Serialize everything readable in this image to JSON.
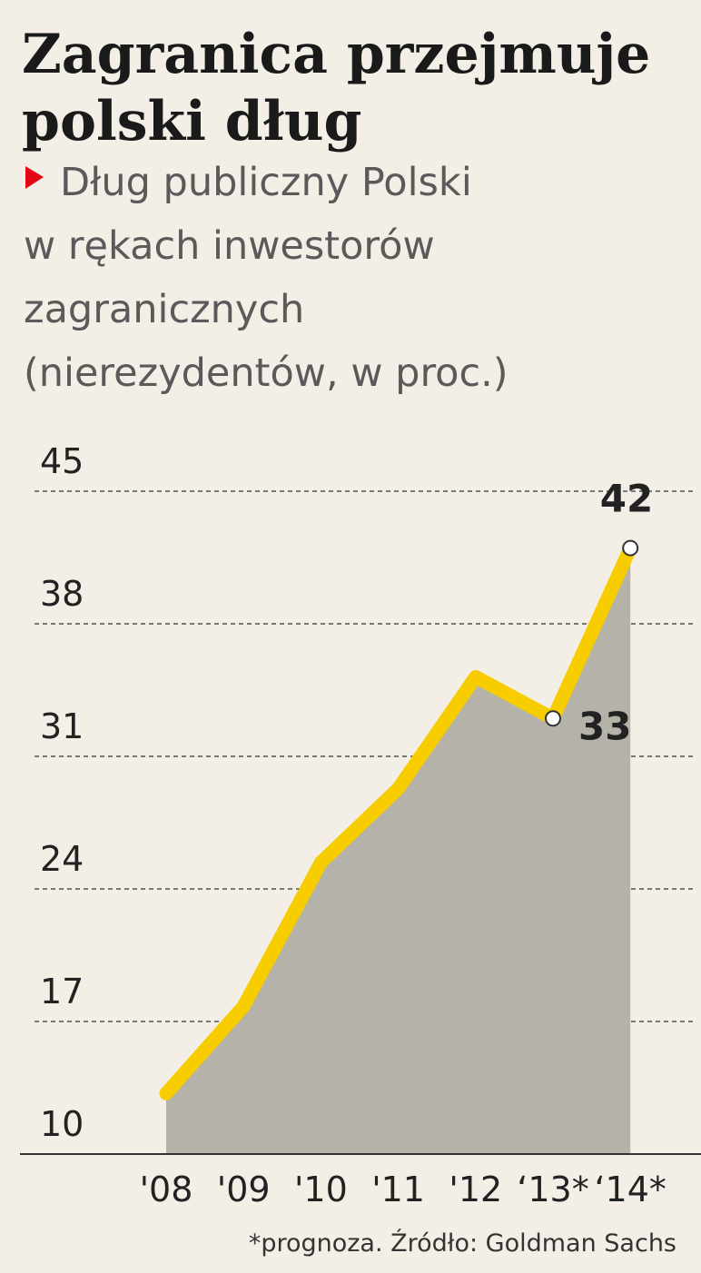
{
  "chart_data": {
    "type": "area-line",
    "title_lines": [
      "Zagranica przejmuje",
      "polski dług"
    ],
    "subtitle_lines": [
      "Dług publiczny Polski",
      "w rękach inwestorów",
      "zagranicznych",
      "(nierezydentów, w proc.)"
    ],
    "categories": [
      "'08",
      "'09",
      "'10",
      "'11",
      "'12",
      "‘13*",
      "‘14*"
    ],
    "values": [
      13.2,
      17.8,
      25.4,
      29.3,
      35.2,
      33,
      42
    ],
    "value_labels": [
      null,
      null,
      null,
      null,
      null,
      "33",
      "42"
    ],
    "line_color": "#f7cd00",
    "area_color": "#b5b2aa",
    "ylim": [
      10,
      45
    ],
    "yticks": [
      10,
      17,
      24,
      31,
      38,
      45
    ],
    "grid": true,
    "footnote": "*prognoza. Źródło: Goldman Sachs"
  }
}
